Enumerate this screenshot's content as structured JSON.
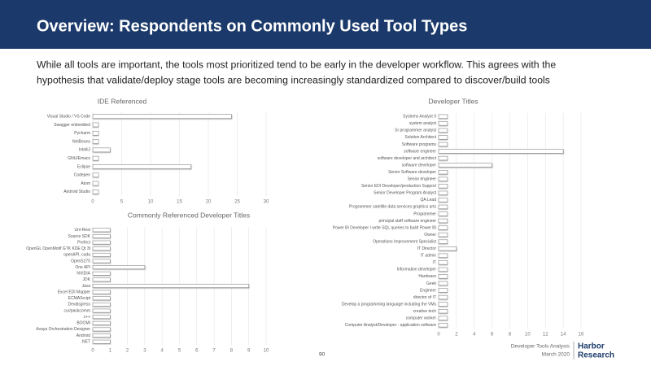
{
  "header": {
    "title": "Overview: Respondents on Commonly Used Tool Types"
  },
  "subtitle": [
    "While all tools are important, the tools most prioritized tend to be early in the developer workflow. This agrees with the",
    "hypothesis that validate/deploy stage tools are becoming increasingly standardized compared to discover/build tools"
  ],
  "footer": {
    "page": "90",
    "doc": "Developer Tools Analysis",
    "date": "March 2020",
    "logo": [
      "Harbor",
      "Research"
    ]
  },
  "chart_data": [
    {
      "type": "hbar",
      "title": "IDE Referenced",
      "color": "#ffffff",
      "grid": true,
      "categories": [
        "Visual Studio / VS Code",
        "Swagger embedded",
        "Pycharm",
        "NetBeans",
        "IntelliJ",
        "GNU/Emacs",
        "Eclipse",
        "Codepen",
        "Atom",
        "Android Studio"
      ],
      "values": [
        24,
        1,
        1,
        1,
        3,
        1,
        17,
        1,
        1,
        1
      ],
      "xlim": [
        0,
        30
      ],
      "xticks": [
        0,
        5,
        10,
        15,
        20,
        25,
        30
      ]
    },
    {
      "type": "hbar",
      "title": "Commonly Referenced Developer Titles",
      "color": "#ffffff",
      "grid": true,
      "categories": [
        "Uni-Rest",
        "Source SDK",
        "Prefect",
        "OpenGL OpenMotif GTK KDE Qt 3t",
        "openAPI, cuda",
        "OpenS270",
        "One API",
        "NVIDIA",
        "JDK",
        "Java",
        "Excel EDI Mapper",
        "ECMAScript",
        "Devdisgress",
        "cur/paskcomm",
        "c++",
        "BOOMI",
        "Avaya Orchestration Designer",
        "Android",
        ".NET"
      ],
      "values": [
        1,
        1,
        1,
        1,
        1,
        1,
        3,
        1,
        1,
        9,
        1,
        1,
        1,
        1,
        1,
        1,
        1,
        1,
        1
      ],
      "xlim": [
        0,
        10
      ],
      "xticks": [
        0,
        1,
        2,
        3,
        4,
        5,
        6,
        7,
        8,
        9,
        10
      ]
    },
    {
      "type": "hbar",
      "title": "Developer Titles",
      "color": "#ffffff",
      "grid": true,
      "categories": [
        "Systems Analyst II",
        "system analyst",
        "Sr programmer analyst",
        "Solution Architect",
        "Software programs",
        "software engineer",
        "software developer and architect",
        "software developer",
        "Senior Software developer",
        "Senior engineer",
        "Senior EDI Developer/production Support",
        "Senior Developer Program Analyst",
        "QA Lead",
        "Programmer satellite data services graphics arts",
        "Programmer",
        "principal staff software engineer",
        "Power BI Developer I write SQL queries to build Power BI",
        "Owner",
        "Operations Improvement Specialist",
        "IT Director",
        "IT admin",
        "IT",
        "Information developer",
        "Hardware",
        "Geek",
        "Engineer",
        "director of IT",
        "Develop a programming language including the VMs",
        "creative tech",
        "computer worker",
        "Computer Analyst/Developer - application software"
      ],
      "values": [
        1,
        1,
        1,
        1,
        1,
        14,
        1,
        6,
        1,
        1,
        1,
        1,
        1,
        1,
        1,
        1,
        1,
        1,
        1,
        2,
        1,
        1,
        1,
        1,
        1,
        1,
        1,
        1,
        1,
        1,
        1
      ],
      "xlim": [
        0,
        16
      ],
      "xticks": [
        0,
        2,
        4,
        6,
        8,
        10,
        12,
        14,
        16
      ]
    }
  ]
}
